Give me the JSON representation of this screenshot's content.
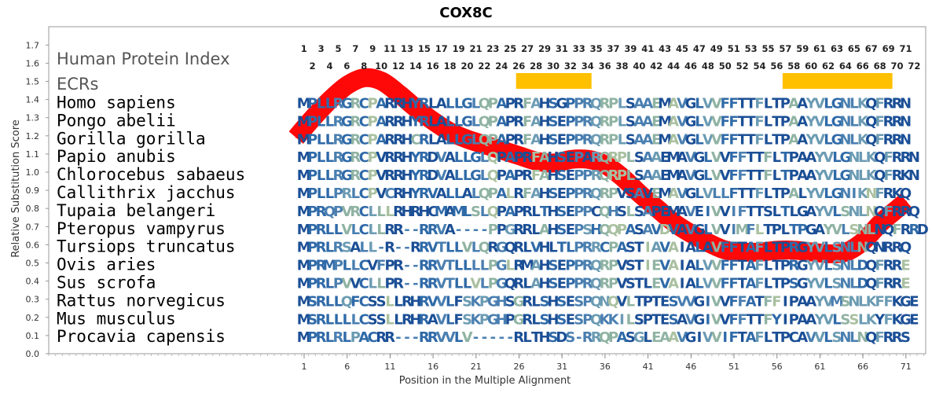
{
  "chart_data": {
    "type": "line",
    "title": "COX8C",
    "xlabel": "Position in the Multiple Alignment",
    "ylabel": "Relative Substitution Score",
    "ylim": [
      0.0,
      1.75
    ],
    "xlim": [
      1,
      72
    ],
    "yticks": [
      "0.0",
      "0.1",
      "0.2",
      "0.3",
      "0.4",
      "0.5",
      "0.6",
      "0.7",
      "0.8",
      "0.9",
      "1.0",
      "1.1",
      "1.2",
      "1.3",
      "1.4",
      "1.5",
      "1.6",
      "1.7"
    ],
    "xticks": [
      "1",
      "6",
      "11",
      "16",
      "21",
      "26",
      "31",
      "36",
      "41",
      "46",
      "51",
      "56",
      "61",
      "66",
      "71"
    ],
    "grid": false,
    "series": [
      {
        "color": "#ff0000",
        "x": [
          1,
          3,
          5,
          7,
          9,
          11,
          13,
          15,
          17,
          19,
          21,
          23,
          25,
          27,
          29,
          31,
          33,
          35,
          37,
          39,
          41,
          43,
          45,
          47,
          49,
          51,
          53,
          55,
          57,
          59,
          61,
          63,
          65,
          67,
          69,
          71,
          72
        ],
        "values": [
          1.19,
          1.3,
          1.4,
          1.48,
          1.52,
          1.5,
          1.43,
          1.35,
          1.28,
          1.22,
          1.18,
          1.15,
          1.12,
          1.09,
          1.06,
          1.05,
          1.07,
          1.07,
          1.04,
          0.97,
          0.88,
          0.8,
          0.72,
          0.66,
          0.61,
          0.57,
          0.56,
          0.56,
          0.57,
          0.57,
          0.56,
          0.55,
          0.56,
          0.62,
          0.72,
          0.8,
          0.84
        ]
      }
    ],
    "ecr_label": "ECRs",
    "ecr_color": "#ffc000",
    "ecrs": [
      [
        26,
        34
      ],
      [
        57,
        69
      ]
    ],
    "alignment_title": "Human Protein Index",
    "positions_odd": [
      "1",
      "3",
      "5",
      "7",
      "9",
      "11",
      "13",
      "15",
      "17",
      "19",
      "21",
      "23",
      "25",
      "27",
      "29",
      "31",
      "33",
      "35",
      "37",
      "39",
      "41",
      "43",
      "45",
      "47",
      "49",
      "51",
      "53",
      "55",
      "57",
      "59",
      "61",
      "63",
      "65",
      "67",
      "69",
      "71"
    ],
    "positions_even": [
      "2",
      "4",
      "6",
      "8",
      "10",
      "12",
      "14",
      "16",
      "18",
      "20",
      "22",
      "24",
      "26",
      "28",
      "30",
      "32",
      "34",
      "36",
      "38",
      "40",
      "42",
      "44",
      "46",
      "48",
      "50",
      "52",
      "54",
      "56",
      "58",
      "60",
      "62",
      "64",
      "66",
      "68",
      "70",
      "72"
    ],
    "species": [
      {
        "name": "Homo sapiens",
        "sequence": "MPLLRGRCPARRHYRLALLGLQPAPRFAHSGPPRQRPLSAAEMAVGLVVFFTTFLTPAAYVLGNLKQFRRN"
      },
      {
        "name": "Pongo abelii",
        "sequence": "MPLLRGRCPARRHYRLALLGLQPAPRFAHSEPPRQRPLSAAEMAVGLVVFFTTFLTPAAYVLGNLKQFRRN"
      },
      {
        "name": "Gorilla gorilla",
        "sequence": "MPLLRGRCPARRHCRLALLGLQPAPRFAHSEPPRQRPLSAAEMAVGLVVFFTTFLTPAAYVLGNLKQFRRN"
      },
      {
        "name": "Papio anubis",
        "sequence": "MPLLRGRCPVRRHYRDVALLGLQPAPRFAHSEPARQRPLSAAEMAVGLVVFFTTFLTPAAYVLGNLKQFRRN"
      },
      {
        "name": "Chlorocebus sabaeus",
        "sequence": "MPLLRGRCPVRRHYRDVALLGLQPAPRFAHSEPPRQRPLSAAEMAVGLVVFFTTFLTPAAYVLGNLKQFRKN"
      },
      {
        "name": "Callithrix jacchus",
        "sequence": "MPLLPRLCPVCRHYRVALLALQPALRFAHSEPPRQRPVSAVEMAVGLVLLFTTFLTPALYVLGNIKNFRKQ"
      },
      {
        "name": "Tupaia belangeri",
        "sequence": "MPRQPVRCLLLRHRHCMAMLSLQPAPRLTHSEPPCQHSLSAPEMAVEIVVIFTTSLTLGAYVLSNLNQFRRQ"
      },
      {
        "name": "Pteropus vampyrus",
        "sequence": "MPRLLVLCLLRR--RRVA----PPGRRLAHSEPSHQQPASAVDVAVGLVVIMFLTPLTPGAYVLSNLNQFRRD"
      },
      {
        "name": "Tursiops truncatus",
        "sequence": "MPRLRSALL-R--RRVTLLVLQRGQRLVHLTLPRRCPASTIAVAIALAVFFTAFLTPRGYVLSNLNQNRRQ"
      },
      {
        "name": "Ovis aries",
        "sequence": "MPRMPLLCVFPR--RRVTLLLLPGLRMAHSEPPRQRPVSTIEVAIALVVFFTAFLTPRGYVLSNLDQFRRE"
      },
      {
        "name": "Sus scrofa",
        "sequence": "MPRLPVVCLLPR--RRVTLLVLPGQRLAHSEPPRQRPVSTLEVAIALVVFFTAFLTPSGYVLSNLDQFRRE"
      },
      {
        "name": "Rattus norvegicus",
        "sequence": "MSRLLQFCSSLLRHRVVLFSKPGHSGRLSHSESPQNQVLTPTESVVGIVVFFATFFIPAAYVMSNLKFFKGE"
      },
      {
        "name": "Mus musculus",
        "sequence": "MSRLLLLCSSLLRHRAVLFSKPGHPGRLSHSESPQKKILSPTESAVGIVVFFTTFYIPAAYVLSSLKYFKGE"
      },
      {
        "name": "Procavia capensis",
        "sequence": "MPRLRLPACRR---RRVVLV-----RLTHSDS-RRQPASGLEAAVGIVVIFTAFLTPCAVVLSNLNQFRRS"
      }
    ],
    "residue_colors": [
      "#1b4f96",
      "#2f6aa8",
      "#4a7fb0",
      "#6b9bb3",
      "#8fb3a3",
      "#a9c0a0",
      "#c0cfa5"
    ]
  }
}
